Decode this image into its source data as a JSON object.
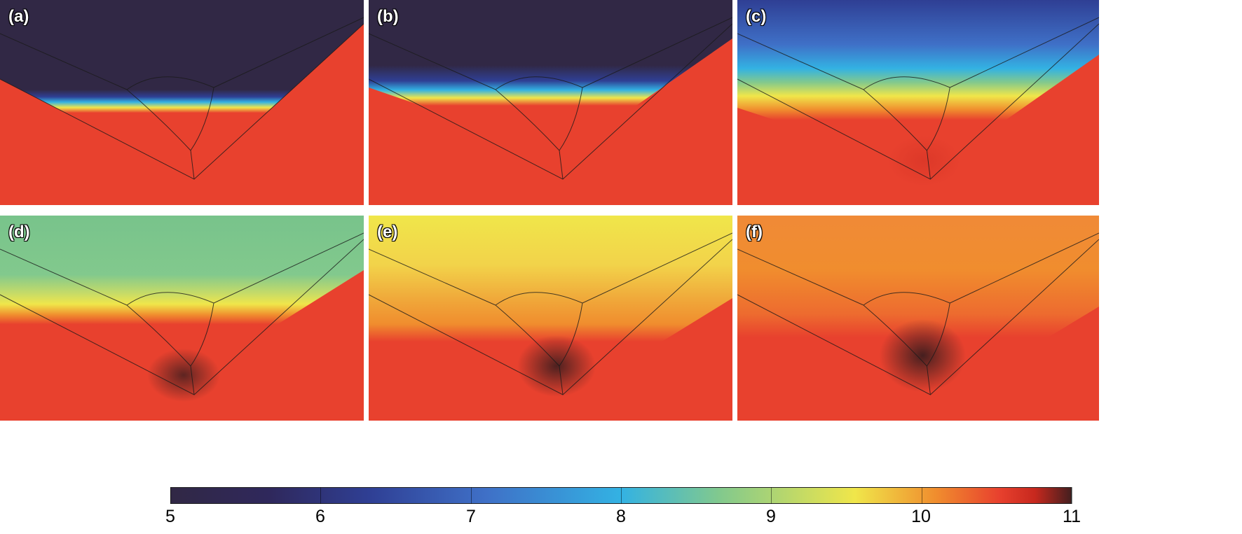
{
  "panels": [
    {
      "label": "(a)",
      "front_stops": [
        {
          "offset": "0%",
          "color": "#312845"
        },
        {
          "offset": "50%",
          "color": "#312845"
        },
        {
          "offset": "54%",
          "color": "#2f3f94"
        },
        {
          "offset": "57%",
          "color": "#33b2e3"
        },
        {
          "offset": "60%",
          "color": "#f0e64a"
        },
        {
          "offset": "63%",
          "color": "#e8412e"
        },
        {
          "offset": "100%",
          "color": "#e8412e"
        }
      ],
      "hot_opacity": 0,
      "hot_color": "#451f1f"
    },
    {
      "label": "(b)",
      "front_stops": [
        {
          "offset": "0%",
          "color": "#312845"
        },
        {
          "offset": "42%",
          "color": "#312845"
        },
        {
          "offset": "52%",
          "color": "#2f3f94"
        },
        {
          "offset": "58%",
          "color": "#33b2e3"
        },
        {
          "offset": "63%",
          "color": "#f0e64a"
        },
        {
          "offset": "68%",
          "color": "#e8412e"
        },
        {
          "offset": "100%",
          "color": "#e8412e"
        }
      ],
      "hot_opacity": 0,
      "hot_color": "#451f1f"
    },
    {
      "label": "(c)",
      "front_stops": [
        {
          "offset": "0%",
          "color": "#2f3f94"
        },
        {
          "offset": "26%",
          "color": "#3f70c7"
        },
        {
          "offset": "40%",
          "color": "#33b2e3"
        },
        {
          "offset": "48%",
          "color": "#82c98d"
        },
        {
          "offset": "56%",
          "color": "#f0e64a"
        },
        {
          "offset": "64%",
          "color": "#f08d2e"
        },
        {
          "offset": "70%",
          "color": "#e8412e"
        },
        {
          "offset": "100%",
          "color": "#e8412e"
        }
      ],
      "hot_opacity": 0.35,
      "hot_color": "#c7281e"
    },
    {
      "label": "(d)",
      "front_stops": [
        {
          "offset": "0%",
          "color": "#78c38b"
        },
        {
          "offset": "38%",
          "color": "#82c98d"
        },
        {
          "offset": "50%",
          "color": "#c6db68"
        },
        {
          "offset": "57%",
          "color": "#f0e64a"
        },
        {
          "offset": "64%",
          "color": "#f08d2e"
        },
        {
          "offset": "70%",
          "color": "#e8412e"
        },
        {
          "offset": "100%",
          "color": "#e8412e"
        }
      ],
      "hot_opacity": 0.85,
      "hot_color": "#451f1f"
    },
    {
      "label": "(e)",
      "front_stops": [
        {
          "offset": "0%",
          "color": "#f0e64a"
        },
        {
          "offset": "28%",
          "color": "#f2d34a"
        },
        {
          "offset": "48%",
          "color": "#f0a83a"
        },
        {
          "offset": "62%",
          "color": "#f08d2e"
        },
        {
          "offset": "72%",
          "color": "#e8412e"
        },
        {
          "offset": "100%",
          "color": "#e8412e"
        }
      ],
      "hot_opacity": 0.95,
      "hot_color": "#451f1f"
    },
    {
      "label": "(f)",
      "front_stops": [
        {
          "offset": "0%",
          "color": "#f08a37"
        },
        {
          "offset": "30%",
          "color": "#f08d2e"
        },
        {
          "offset": "55%",
          "color": "#ed6b2f"
        },
        {
          "offset": "68%",
          "color": "#e8412e"
        },
        {
          "offset": "100%",
          "color": "#e8412e"
        }
      ],
      "hot_opacity": 1,
      "hot_color": "#451f1f"
    }
  ],
  "colorbar": {
    "ticks": [
      "5",
      "6",
      "7",
      "8",
      "9",
      "10",
      "11"
    ],
    "min": 5,
    "max": 11
  }
}
